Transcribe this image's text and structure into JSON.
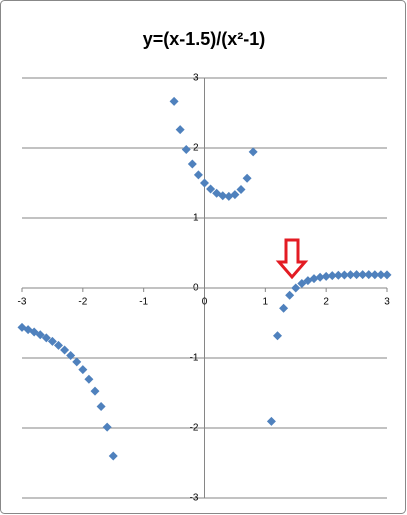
{
  "chart_data": {
    "type": "scatter",
    "title": "y=(x-1.5)/(x²-1)",
    "series": [
      {
        "color": "#4f81bd",
        "x": [
          -3,
          -2.9,
          -2.8,
          -2.7,
          -2.6,
          -2.5,
          -2.4,
          -2.3,
          -2.2,
          -2.1,
          -2,
          -1.9,
          -1.8,
          -1.7,
          -1.6,
          -1.5,
          -0.5,
          -0.4,
          -0.3,
          -0.2,
          -0.1,
          0,
          0.1,
          0.2,
          0.3,
          0.4,
          0.5,
          0.6,
          0.7,
          0.8,
          1.1,
          1.2,
          1.3,
          1.4,
          1.5,
          1.6,
          1.7,
          1.8,
          1.9,
          2,
          2.1,
          2.2,
          2.3,
          2.4,
          2.5,
          2.6,
          2.7,
          2.8,
          2.9,
          3
        ],
        "values": [
          -0.5625,
          -0.5938,
          -0.6287,
          -0.6677,
          -0.7118,
          -0.7619,
          -0.8193,
          -0.8858,
          -0.9635,
          -1.0557,
          -1.1667,
          -1.3027,
          -1.4732,
          -1.6931,
          -1.9872,
          -2.4,
          2.6667,
          2.2619,
          1.978,
          1.7708,
          1.6162,
          1.5,
          1.4141,
          1.3542,
          1.3187,
          1.3095,
          1.3333,
          1.4063,
          1.5686,
          1.9444,
          -1.9048,
          -0.6818,
          -0.2899,
          -0.1042,
          0,
          0.0641,
          0.1058,
          0.1339,
          0.1533,
          0.1667,
          0.176,
          0.1823,
          0.1865,
          0.1891,
          0.1905,
          0.191,
          0.1908,
          0.1901,
          0.1889,
          0.1875
        ]
      }
    ],
    "xlim": [
      -3,
      3
    ],
    "xticks": [
      -3,
      -2,
      -1,
      0,
      1,
      2,
      3
    ],
    "ylim": [
      -3,
      3
    ],
    "yticks": [
      -3,
      -2,
      -1,
      0,
      1,
      2,
      3
    ],
    "grid": true
  }
}
